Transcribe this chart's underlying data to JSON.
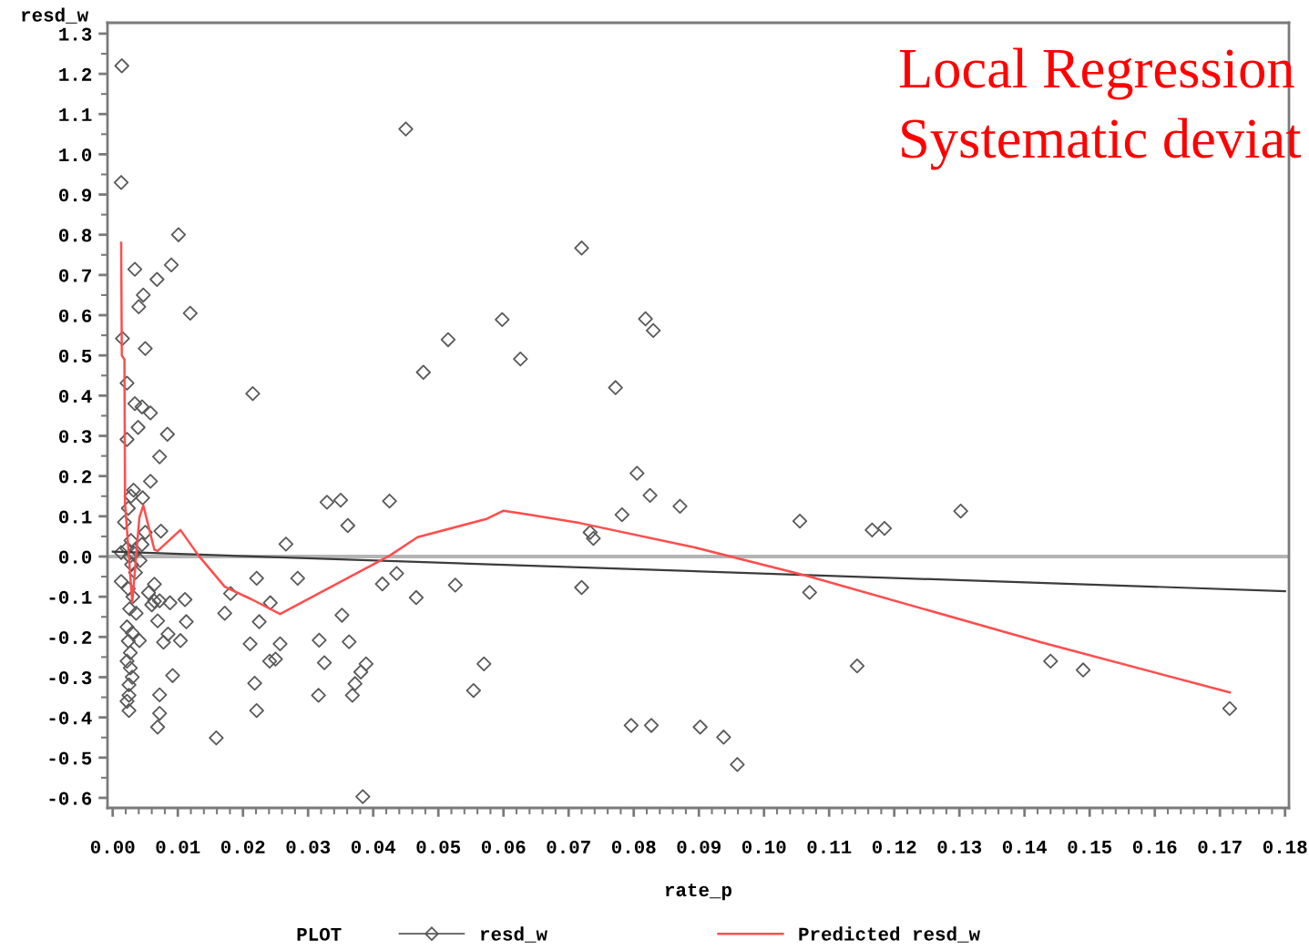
{
  "chart_data": {
    "type": "scatter",
    "xlabel": "rate_p",
    "ylabel": "resd_w",
    "legend_title": "PLOT",
    "annotations": [
      "Local Regression",
      "Systematic deviat"
    ],
    "xlim": [
      -0.0008,
      0.1806
    ],
    "ylim": [
      -0.625,
      1.327
    ],
    "xticks": [
      {
        "value": 0.0,
        "label": "0.00"
      },
      {
        "value": 0.01,
        "label": "0.01"
      },
      {
        "value": 0.02,
        "label": "0.02"
      },
      {
        "value": 0.03,
        "label": "0.03"
      },
      {
        "value": 0.04,
        "label": "0.04"
      },
      {
        "value": 0.05,
        "label": "0.05"
      },
      {
        "value": 0.06,
        "label": "0.06"
      },
      {
        "value": 0.07,
        "label": "0.07"
      },
      {
        "value": 0.08,
        "label": "0.08"
      },
      {
        "value": 0.09,
        "label": "0.09"
      },
      {
        "value": 0.1,
        "label": "0.10"
      },
      {
        "value": 0.11,
        "label": "0.11"
      },
      {
        "value": 0.12,
        "label": "0.12"
      },
      {
        "value": 0.13,
        "label": "0.13"
      },
      {
        "value": 0.14,
        "label": "0.14"
      },
      {
        "value": 0.15,
        "label": "0.15"
      },
      {
        "value": 0.16,
        "label": "0.16"
      },
      {
        "value": 0.17,
        "label": "0.17"
      },
      {
        "value": 0.18,
        "label": "0.18"
      }
    ],
    "yticks": [
      -0.6,
      -0.5,
      -0.4,
      -0.3,
      -0.2,
      -0.1,
      {
        "value": 0,
        "label": "0.0"
      },
      0.1,
      0.2,
      0.3,
      0.4,
      0.5,
      0.6,
      0.7,
      0.8,
      0.9,
      {
        "value": 1,
        "label": "1.0"
      },
      1.1,
      1.2,
      1.3
    ],
    "line_style": "solid",
    "legend": "bottom",
    "ref_lines": [
      {
        "axis": "y",
        "value": 0,
        "color": "#b4b4b4"
      }
    ],
    "series": [
      {
        "name": "resd_w",
        "marker": "diamond",
        "color": "#5a5a5a",
        "x": [
          0.0014,
          0.0013,
          0.0101,
          0.009,
          0.0034,
          0.0068,
          0.0047,
          0.004,
          0.0119,
          0.0015,
          0.005,
          0.0022,
          0.0034,
          0.0045,
          0.0058,
          0.0039,
          0.0084,
          0.0022,
          0.0072,
          0.0058,
          0.0032,
          0.0046,
          0.0018,
          0.0074,
          0.0013,
          0.0064,
          0.0064,
          0.0111,
          0.0088,
          0.0036,
          0.0069,
          0.0113,
          0.0022,
          0.0041,
          0.0078,
          0.0104,
          0.0085,
          0.0027,
          0.0027,
          0.0092,
          0.0025,
          0.0025,
          0.0072,
          0.0025,
          0.0072,
          0.0069,
          0.0028,
          0.0024,
          0.0028,
          0.0022,
          0.0026,
          0.0032,
          0.0029,
          0.0035,
          0.0024,
          0.0031,
          0.0026,
          0.003,
          0.0024,
          0.0022,
          0.003,
          0.0022,
          0.0045,
          0.0042,
          0.005,
          0.0055,
          0.006,
          0.0072,
          0.0013,
          0.0159,
          0.0181,
          0.0172,
          0.0221,
          0.0225,
          0.0211,
          0.0218,
          0.0221,
          0.0242,
          0.0241,
          0.0215,
          0.045,
          0.072,
          0.0598,
          0.0818,
          0.083,
          0.0515,
          0.0626,
          0.0477,
          0.0772,
          0.0805,
          0.0825,
          0.0871,
          0.0782,
          0.0329,
          0.035,
          0.0425,
          0.0361,
          0.0266,
          0.0733,
          0.0738,
          0.0284,
          0.0436,
          0.0414,
          0.0466,
          0.0526,
          0.072,
          0.0352,
          0.0317,
          0.0363,
          0.0257,
          0.025,
          0.0325,
          0.0389,
          0.0381,
          0.0372,
          0.0368,
          0.0316,
          0.057,
          0.0554,
          0.0384,
          0.0796,
          0.0827,
          0.0902,
          0.0938,
          0.0959,
          0.1055,
          0.1166,
          0.1185,
          0.1302,
          0.107,
          0.1143,
          0.144,
          0.149,
          0.1715
        ],
        "values": [
          1.22,
          0.93,
          0.8,
          0.725,
          0.714,
          0.689,
          0.65,
          0.621,
          0.605,
          0.542,
          0.517,
          0.431,
          0.38,
          0.372,
          0.357,
          0.321,
          0.304,
          0.291,
          0.248,
          0.187,
          0.165,
          0.146,
          0.085,
          0.063,
          -0.062,
          -0.069,
          -0.111,
          -0.107,
          -0.115,
          -0.141,
          -0.16,
          -0.162,
          -0.175,
          -0.209,
          -0.213,
          -0.209,
          -0.193,
          -0.239,
          -0.277,
          -0.296,
          -0.319,
          -0.345,
          -0.344,
          -0.383,
          -0.39,
          -0.424,
          0.15,
          0.12,
          0.04,
          0.02,
          0.0,
          0.01,
          -0.02,
          -0.04,
          -0.08,
          -0.1,
          -0.13,
          -0.19,
          -0.21,
          -0.26,
          -0.3,
          -0.36,
          0.03,
          -0.01,
          0.06,
          -0.09,
          -0.12,
          -0.11,
          0.01,
          -0.451,
          -0.092,
          -0.141,
          -0.054,
          -0.162,
          -0.217,
          -0.315,
          -0.383,
          -0.115,
          -0.26,
          0.405,
          1.063,
          0.767,
          0.589,
          0.591,
          0.562,
          0.539,
          0.491,
          0.458,
          0.42,
          0.207,
          0.152,
          0.125,
          0.104,
          0.135,
          0.14,
          0.138,
          0.077,
          0.031,
          0.06,
          0.045,
          -0.054,
          -0.042,
          -0.068,
          -0.102,
          -0.071,
          -0.077,
          -0.146,
          -0.208,
          -0.212,
          -0.217,
          -0.255,
          -0.264,
          -0.267,
          -0.287,
          -0.316,
          -0.345,
          -0.345,
          -0.267,
          -0.333,
          -0.597,
          -0.42,
          -0.42,
          -0.424,
          -0.449,
          -0.517,
          0.088,
          0.066,
          0.07,
          0.113,
          -0.089,
          -0.272,
          -0.26,
          -0.282,
          -0.378
        ]
      },
      {
        "type": "line",
        "marker": "none",
        "color": "#3c3c3c",
        "x": [
          0.0,
          0.18
        ],
        "values": [
          0.012,
          -0.086
        ]
      },
      {
        "name": "Predicted resd_w",
        "type": "line",
        "marker": "none",
        "color": "#ff4d4d",
        "x": [
          0.0013,
          0.0014,
          0.0018,
          0.0019,
          0.002,
          0.003,
          0.0041,
          0.0047,
          0.0064,
          0.0069,
          0.0104,
          0.0132,
          0.0172,
          0.0214,
          0.0257,
          0.0425,
          0.0468,
          0.0575,
          0.06,
          0.0639,
          0.0718,
          0.089,
          0.1066,
          0.1427,
          0.1715
        ],
        "values": [
          0.78,
          0.5,
          0.49,
          0.13,
          0.11,
          -0.115,
          0.097,
          0.127,
          0.017,
          0.014,
          0.066,
          0.002,
          -0.075,
          -0.107,
          -0.143,
          0.002,
          0.048,
          0.094,
          0.114,
          0.104,
          0.083,
          0.024,
          -0.048,
          -0.214,
          -0.338
        ]
      }
    ]
  }
}
